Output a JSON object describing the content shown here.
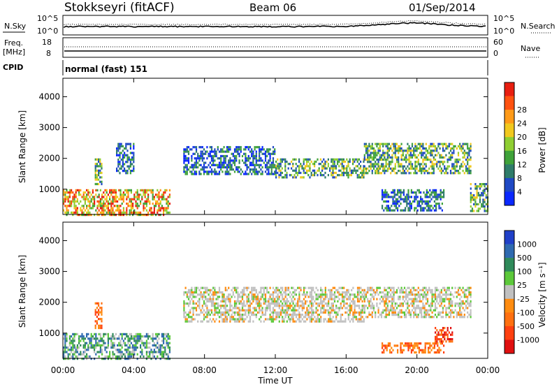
{
  "header": {
    "station": "Stokkseyri (fitACF)",
    "beam": "Beam 06",
    "date": "01/Sep/2014"
  },
  "panels": {
    "nsky": {
      "left_label": "N.Sky",
      "left_ticks": [
        "10^5",
        "10^0"
      ],
      "right_label": "N.Search",
      "right_ticks": [
        "10^5",
        "10^0"
      ]
    },
    "freq": {
      "left_label_1": "Freq.",
      "left_label_2": "[MHz]",
      "left_ticks": [
        "18",
        "8"
      ],
      "right_label": "Nave",
      "right_ticks": [
        "60",
        "0"
      ]
    },
    "cpid": {
      "label": "CPID",
      "value": "normal (fast) 151"
    }
  },
  "chart_data": [
    {
      "type": "heatmap",
      "name": "power",
      "xlabel": "",
      "ylabel": "Slant Range [km]",
      "ylim": [
        180,
        4600
      ],
      "yticks": [
        "1000",
        "2000",
        "3000",
        "4000"
      ],
      "xlim_hours": [
        0,
        24
      ],
      "colorbar": {
        "label": "Power [dB]",
        "ticks": [
          "4",
          "8",
          "12",
          "16",
          "20",
          "24",
          "28"
        ],
        "colors": [
          "#0a28ff",
          "#1f49c4",
          "#2f7c6a",
          "#3fa23a",
          "#8fce32",
          "#f1c81e",
          "#ff9a18",
          "#ff5210",
          "#e81e10"
        ]
      },
      "regions": [
        {
          "t": [
            0.0,
            6.0
          ],
          "r": [
            200,
            1000
          ],
          "level": "high"
        },
        {
          "t": [
            1.8,
            2.2
          ],
          "r": [
            1200,
            2000
          ],
          "level": "mid"
        },
        {
          "t": [
            3.0,
            4.0
          ],
          "r": [
            1500,
            2500
          ],
          "level": "low"
        },
        {
          "t": [
            6.8,
            12.0
          ],
          "r": [
            1500,
            2400
          ],
          "level": "low"
        },
        {
          "t": [
            12.0,
            17.0
          ],
          "r": [
            1400,
            2000
          ],
          "level": "mid"
        },
        {
          "t": [
            17.0,
            23.0
          ],
          "r": [
            1500,
            2500
          ],
          "level": "mid"
        },
        {
          "t": [
            18.0,
            21.5
          ],
          "r": [
            300,
            1000
          ],
          "level": "low"
        },
        {
          "t": [
            23.0,
            24.0
          ],
          "r": [
            300,
            1200
          ],
          "level": "mid"
        }
      ]
    },
    {
      "type": "heatmap",
      "name": "velocity",
      "xlabel": "Time UT",
      "ylabel": "Slant Range [km]",
      "ylim": [
        180,
        4600
      ],
      "yticks": [
        "1000",
        "2000",
        "3000",
        "4000"
      ],
      "xticks": [
        "00:00",
        "04:00",
        "08:00",
        "12:00",
        "16:00",
        "20:00",
        "00:00"
      ],
      "colorbar": {
        "label": "Velocity [m s⁻¹]",
        "ticks": [
          "1000",
          "500",
          "100",
          "25",
          "-25",
          "-100",
          "-500",
          "-1000"
        ],
        "colors": [
          "#2040c8",
          "#2f6ab0",
          "#2f8a5a",
          "#5cc83a",
          "#c0c0c0",
          "#ff8c10",
          "#ff7010",
          "#ff4010",
          "#e01010"
        ]
      },
      "regions": [
        {
          "t": [
            0.0,
            6.0
          ],
          "r": [
            200,
            1000
          ],
          "level": "toward"
        },
        {
          "t": [
            1.8,
            2.2
          ],
          "r": [
            1200,
            2000
          ],
          "level": "away"
        },
        {
          "t": [
            6.8,
            17.0
          ],
          "r": [
            1400,
            2500
          ],
          "level": "near-zero"
        },
        {
          "t": [
            17.0,
            23.0
          ],
          "r": [
            1500,
            2500
          ],
          "level": "near-zero"
        },
        {
          "t": [
            18.0,
            21.5
          ],
          "r": [
            400,
            700
          ],
          "level": "away"
        },
        {
          "t": [
            21.0,
            22.0
          ],
          "r": [
            700,
            1200
          ],
          "level": "away-strong"
        }
      ]
    }
  ]
}
